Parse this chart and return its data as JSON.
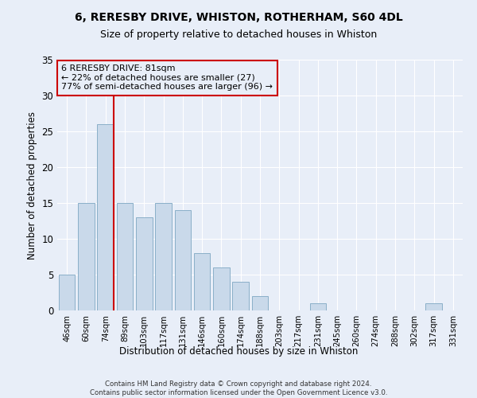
{
  "title1": "6, RERESBY DRIVE, WHISTON, ROTHERHAM, S60 4DL",
  "title2": "Size of property relative to detached houses in Whiston",
  "xlabel": "Distribution of detached houses by size in Whiston",
  "ylabel": "Number of detached properties",
  "categories": [
    "46sqm",
    "60sqm",
    "74sqm",
    "89sqm",
    "103sqm",
    "117sqm",
    "131sqm",
    "146sqm",
    "160sqm",
    "174sqm",
    "188sqm",
    "203sqm",
    "217sqm",
    "231sqm",
    "245sqm",
    "260sqm",
    "274sqm",
    "288sqm",
    "302sqm",
    "317sqm",
    "331sqm"
  ],
  "values": [
    5,
    15,
    26,
    15,
    13,
    15,
    14,
    8,
    6,
    4,
    2,
    0,
    0,
    1,
    0,
    0,
    0,
    0,
    0,
    1,
    0
  ],
  "bar_color": "#c9d9ea",
  "bar_edge_color": "#8aafc8",
  "vline_color": "#cc0000",
  "annotation_text": "6 RERESBY DRIVE: 81sqm\n← 22% of detached houses are smaller (27)\n77% of semi-detached houses are larger (96) →",
  "annotation_box_color": "#cc0000",
  "ylim": [
    0,
    35
  ],
  "yticks": [
    0,
    5,
    10,
    15,
    20,
    25,
    30,
    35
  ],
  "footer": "Contains HM Land Registry data © Crown copyright and database right 2024.\nContains public sector information licensed under the Open Government Licence v3.0.",
  "bg_color": "#e8eef8",
  "grid_color": "#ffffff"
}
